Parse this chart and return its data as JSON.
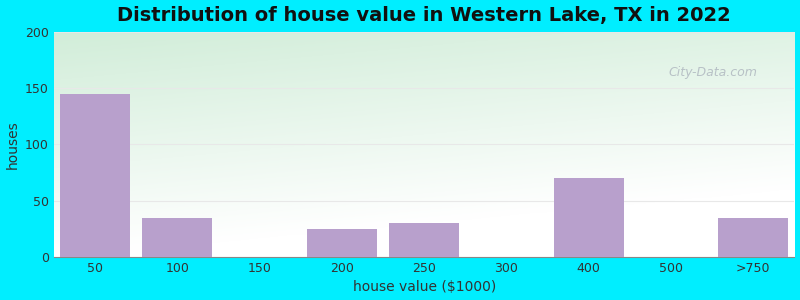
{
  "title": "Distribution of house value in Western Lake, TX in 2022",
  "xlabel": "house value ($1000)",
  "ylabel": "houses",
  "categories": [
    "50",
    "100",
    "150",
    "200",
    "250",
    "300",
    "400",
    "500",
    ">750"
  ],
  "values": [
    145,
    35,
    0,
    25,
    30,
    0,
    70,
    0,
    35
  ],
  "bar_color": "#b8a0cc",
  "bar_edgecolor": "#b8a0cc",
  "ylim": [
    0,
    200
  ],
  "yticks": [
    0,
    50,
    100,
    150,
    200
  ],
  "background_outer": "#00eeff",
  "plot_bg_green": "#d4edda",
  "plot_bg_white": "#ffffff",
  "grid_color": "#e8e8e8",
  "title_fontsize": 14,
  "axis_fontsize": 10,
  "tick_fontsize": 9,
  "watermark_text": "City-Data.com",
  "watermark_color": "#b0b8c0"
}
